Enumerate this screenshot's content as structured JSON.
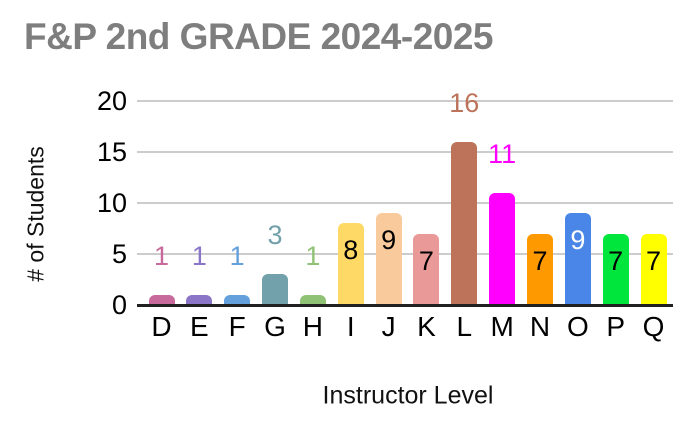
{
  "page": {
    "background": "#ffffff"
  },
  "chart_data": {
    "type": "bar",
    "title": "F&P 2nd GRADE 2024-2025",
    "title_color": "#7e7e7e",
    "xlabel": "Instructor Level",
    "ylabel": "# of Students",
    "categories": [
      "D",
      "E",
      "F",
      "G",
      "H",
      "I",
      "J",
      "K",
      "L",
      "M",
      "N",
      "O",
      "P",
      "Q"
    ],
    "values": [
      1,
      1,
      1,
      3,
      1,
      8,
      9,
      7,
      16,
      11,
      7,
      9,
      7,
      7
    ],
    "bar_colors": [
      "#c76a9b",
      "#8a75c6",
      "#64a0dc",
      "#72a1ab",
      "#90c276",
      "#ffd966",
      "#f9cb9c",
      "#ea9999",
      "#bc735a",
      "#ff00ff",
      "#ff9900",
      "#4a86e8",
      "#00e63c",
      "#ffff00"
    ],
    "label_placement": [
      "outside",
      "outside",
      "outside",
      "outside",
      "outside",
      "inside",
      "inside",
      "inside",
      "outside",
      "outside",
      "inside",
      "inside",
      "inside",
      "inside"
    ],
    "label_colors": [
      "#c76a9b",
      "#8a75c6",
      "#64a0dc",
      "#72a1ab",
      "#90c276",
      "#000000",
      "#000000",
      "#000000",
      "#bc735a",
      "#ff00ff",
      "#000000",
      "#ffffff",
      "#000000",
      "#000000"
    ],
    "y_ticks": [
      0,
      5,
      10,
      15,
      20
    ],
    "ylim": [
      0,
      20
    ],
    "grid": true,
    "legend": "none",
    "gridline_color": "#cccccc",
    "axis_line_color": "#212121",
    "tick_label_color": "#000000"
  }
}
